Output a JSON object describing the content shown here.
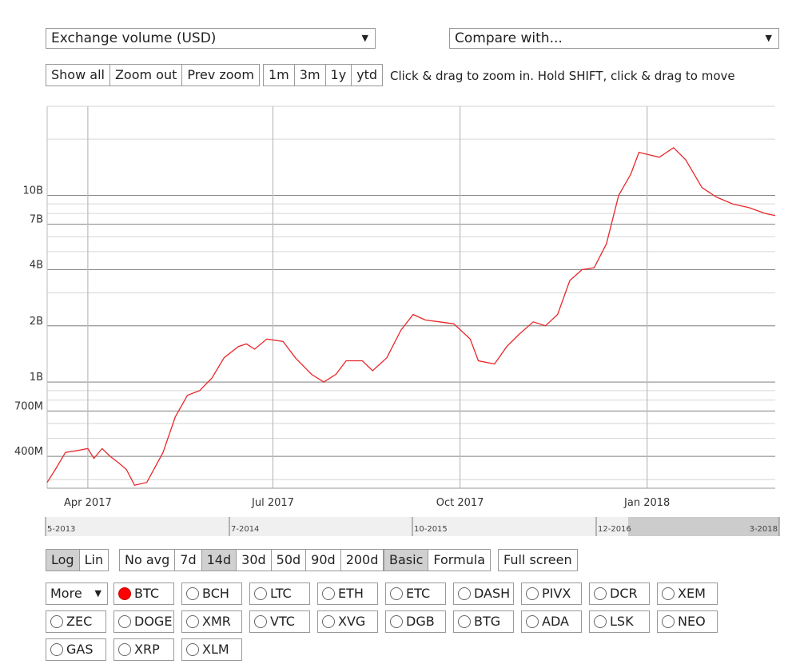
{
  "metric_select": "Exchange volume (USD)",
  "compare_select": "Compare with...",
  "zoom_buttons": [
    "Show all",
    "Zoom out",
    "Prev zoom"
  ],
  "range_buttons": [
    "1m",
    "3m",
    "1y",
    "ytd"
  ],
  "hint": "Click & drag to zoom in. Hold SHIFT, click & drag to move",
  "scale_buttons": [
    {
      "label": "Log",
      "on": true
    },
    {
      "label": "Lin",
      "on": false
    }
  ],
  "avg_buttons": [
    {
      "label": "No avg",
      "on": false
    },
    {
      "label": "7d",
      "on": false
    },
    {
      "label": "14d",
      "on": true
    },
    {
      "label": "30d",
      "on": false
    },
    {
      "label": "50d",
      "on": false
    },
    {
      "label": "90d",
      "on": false
    },
    {
      "label": "200d",
      "on": false
    }
  ],
  "mode_buttons": [
    {
      "label": "Basic",
      "on": true
    },
    {
      "label": "Formula",
      "on": false
    }
  ],
  "fullscreen": "Full screen",
  "more_select": "More",
  "coins": [
    {
      "label": "BTC",
      "on": true
    },
    {
      "label": "BCH"
    },
    {
      "label": "LTC"
    },
    {
      "label": "ETH"
    },
    {
      "label": "ETC"
    },
    {
      "label": "DASH"
    },
    {
      "label": "PIVX"
    },
    {
      "label": "DCR"
    },
    {
      "label": "XEM"
    },
    {
      "label": "ZEC"
    },
    {
      "label": "DOGE"
    },
    {
      "label": "XMR"
    },
    {
      "label": "VTC"
    },
    {
      "label": "XVG"
    },
    {
      "label": "DGB"
    },
    {
      "label": "BTG"
    },
    {
      "label": "ADA"
    },
    {
      "label": "LSK"
    },
    {
      "label": "NEO"
    },
    {
      "label": "GAS"
    },
    {
      "label": "XRP"
    },
    {
      "label": "XLM"
    }
  ],
  "colors": {
    "line": "#e8282b",
    "selected": "#ff0000",
    "navigator_shade": "#cccccc"
  },
  "chart_data": {
    "type": "line",
    "y_scale": "log",
    "ylim": [
      270000000,
      30000000000
    ],
    "xlim": [
      "2017-03-12",
      "2018-03-05"
    ],
    "y_ticks": [
      {
        "v": 400000000,
        "label": "400M"
      },
      {
        "v": 700000000,
        "label": "700M"
      },
      {
        "v": 1000000000,
        "label": "1B"
      },
      {
        "v": 2000000000,
        "label": "2B"
      },
      {
        "v": 4000000000,
        "label": "4B"
      },
      {
        "v": 7000000000,
        "label": "7B"
      },
      {
        "v": 10000000000,
        "label": "10B"
      }
    ],
    "x_ticks": [
      {
        "d": "2017-04-01",
        "label": "Apr 2017"
      },
      {
        "d": "2017-07-01",
        "label": "Jul 2017"
      },
      {
        "d": "2017-10-01",
        "label": "Oct 2017"
      },
      {
        "d": "2018-01-01",
        "label": "Jan 2018"
      }
    ],
    "navigator_labels": [
      "5-2013",
      "7-2014",
      "10-2015",
      "12-2016",
      "3-2018"
    ],
    "series": [
      {
        "color": "#e8282b",
        "points": [
          [
            "2017-03-12",
            290000000
          ],
          [
            "2017-03-16",
            340000000
          ],
          [
            "2017-03-21",
            420000000
          ],
          [
            "2017-03-27",
            430000000
          ],
          [
            "2017-04-01",
            440000000
          ],
          [
            "2017-04-04",
            390000000
          ],
          [
            "2017-04-08",
            440000000
          ],
          [
            "2017-04-12",
            400000000
          ],
          [
            "2017-04-16",
            370000000
          ],
          [
            "2017-04-20",
            340000000
          ],
          [
            "2017-04-24",
            280000000
          ],
          [
            "2017-04-30",
            290000000
          ],
          [
            "2017-05-08",
            420000000
          ],
          [
            "2017-05-14",
            650000000
          ],
          [
            "2017-05-20",
            850000000
          ],
          [
            "2017-05-26",
            900000000
          ],
          [
            "2017-06-01",
            1050000000
          ],
          [
            "2017-06-07",
            1350000000
          ],
          [
            "2017-06-14",
            1550000000
          ],
          [
            "2017-06-18",
            1600000000
          ],
          [
            "2017-06-22",
            1500000000
          ],
          [
            "2017-06-28",
            1700000000
          ],
          [
            "2017-07-06",
            1650000000
          ],
          [
            "2017-07-12",
            1350000000
          ],
          [
            "2017-07-20",
            1100000000
          ],
          [
            "2017-07-26",
            1000000000
          ],
          [
            "2017-08-01",
            1100000000
          ],
          [
            "2017-08-06",
            1300000000
          ],
          [
            "2017-08-14",
            1300000000
          ],
          [
            "2017-08-19",
            1150000000
          ],
          [
            "2017-08-26",
            1350000000
          ],
          [
            "2017-09-02",
            1900000000
          ],
          [
            "2017-09-08",
            2300000000
          ],
          [
            "2017-09-14",
            2150000000
          ],
          [
            "2017-09-21",
            2100000000
          ],
          [
            "2017-09-28",
            2050000000
          ],
          [
            "2017-10-06",
            1700000000
          ],
          [
            "2017-10-10",
            1300000000
          ],
          [
            "2017-10-18",
            1250000000
          ],
          [
            "2017-10-24",
            1550000000
          ],
          [
            "2017-10-30",
            1800000000
          ],
          [
            "2017-11-06",
            2100000000
          ],
          [
            "2017-11-12",
            2000000000
          ],
          [
            "2017-11-18",
            2300000000
          ],
          [
            "2017-11-24",
            3500000000
          ],
          [
            "2017-11-30",
            4000000000
          ],
          [
            "2017-12-06",
            4100000000
          ],
          [
            "2017-12-12",
            5500000000
          ],
          [
            "2017-12-18",
            10000000000
          ],
          [
            "2017-12-24",
            13000000000
          ],
          [
            "2017-12-28",
            17000000000
          ],
          [
            "2018-01-02",
            16500000000
          ],
          [
            "2018-01-07",
            16000000000
          ],
          [
            "2018-01-14",
            18000000000
          ],
          [
            "2018-01-20",
            15500000000
          ],
          [
            "2018-01-28",
            11000000000
          ],
          [
            "2018-02-04",
            9800000000
          ],
          [
            "2018-02-12",
            9000000000
          ],
          [
            "2018-02-20",
            8600000000
          ],
          [
            "2018-02-28",
            8000000000
          ],
          [
            "2018-03-05",
            7800000000
          ]
        ]
      }
    ]
  }
}
